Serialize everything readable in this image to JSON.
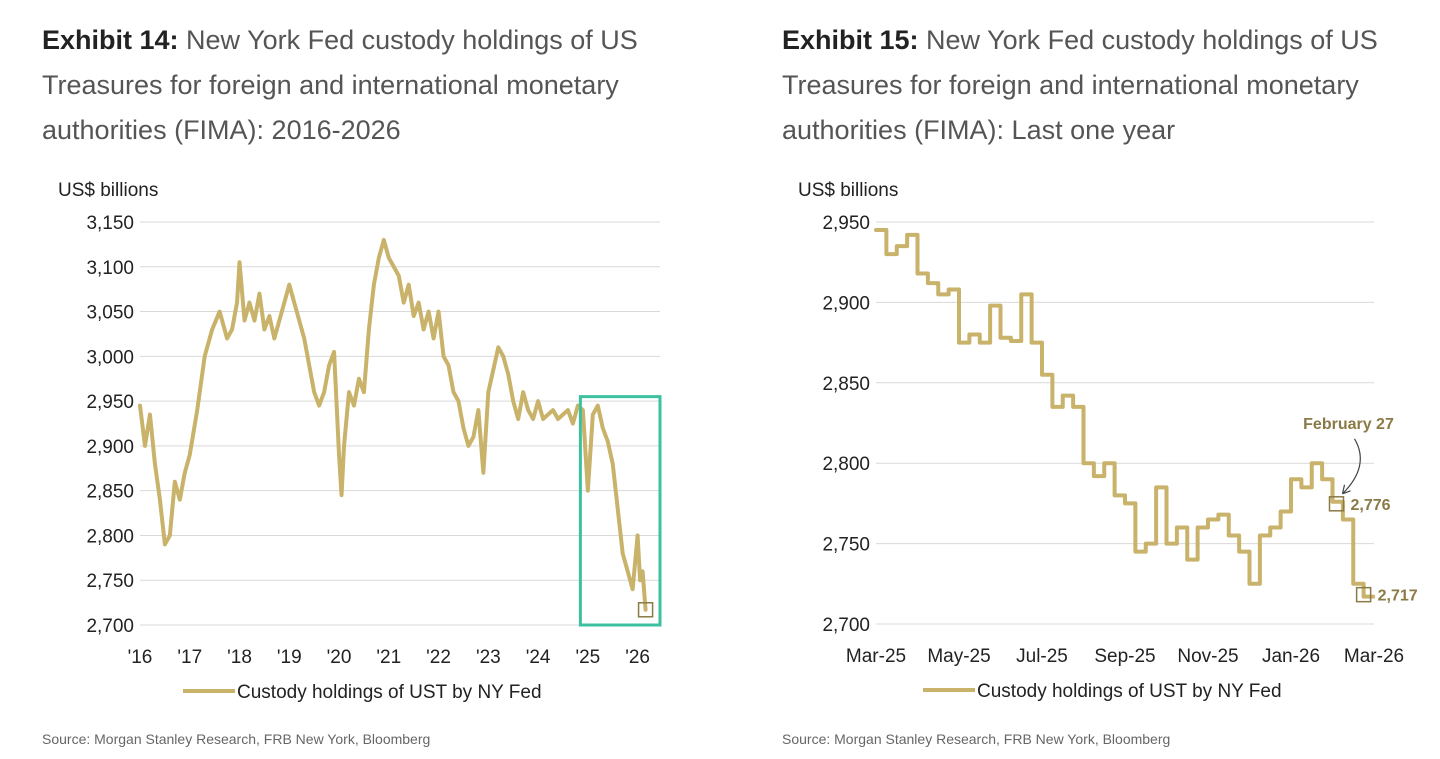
{
  "colors": {
    "series": "#C9B26A",
    "grid": "#D9D9D9",
    "highlight": "#3CC0A0",
    "annotation": "#8A7A45"
  },
  "chart_data": [
    {
      "type": "line",
      "exhibit_label": "Exhibit 14:",
      "title": "New York Fed custody holdings of US Treasures for foreign and international monetary authorities (FIMA): 2016-2026",
      "ylabel": "US$ billions",
      "ylim": [
        2700,
        3150
      ],
      "yticks": [
        "3,150",
        "3,100",
        "3,050",
        "3,000",
        "2,950",
        "2,900",
        "2,850",
        "2,800",
        "2,750",
        "2,700"
      ],
      "xlim": [
        2016,
        2026.45
      ],
      "xticks": [
        {
          "x": 2016,
          "label": "'16"
        },
        {
          "x": 2017,
          "label": "'17"
        },
        {
          "x": 2018,
          "label": "'18"
        },
        {
          "x": 2019,
          "label": "'19"
        },
        {
          "x": 2020,
          "label": "'20"
        },
        {
          "x": 2021,
          "label": "'21"
        },
        {
          "x": 2022,
          "label": "'22"
        },
        {
          "x": 2023,
          "label": "'23"
        },
        {
          "x": 2024,
          "label": "'24"
        },
        {
          "x": 2025,
          "label": "'25"
        },
        {
          "x": 2026,
          "label": "'26"
        }
      ],
      "series": [
        {
          "name": "Custody holdings of UST by NY Fed",
          "x": [
            2016.0,
            2016.1,
            2016.2,
            2016.3,
            2016.4,
            2016.5,
            2016.6,
            2016.7,
            2016.8,
            2016.9,
            2017.0,
            2017.15,
            2017.3,
            2017.45,
            2017.6,
            2017.75,
            2017.85,
            2017.95,
            2018.0,
            2018.1,
            2018.2,
            2018.3,
            2018.4,
            2018.5,
            2018.6,
            2018.7,
            2018.8,
            2018.9,
            2019.0,
            2019.1,
            2019.2,
            2019.3,
            2019.4,
            2019.5,
            2019.6,
            2019.7,
            2019.8,
            2019.9,
            2020.0,
            2020.05,
            2020.1,
            2020.2,
            2020.3,
            2020.4,
            2020.5,
            2020.6,
            2020.7,
            2020.8,
            2020.9,
            2021.0,
            2021.1,
            2021.2,
            2021.3,
            2021.4,
            2021.5,
            2021.6,
            2021.7,
            2021.8,
            2021.9,
            2022.0,
            2022.1,
            2022.2,
            2022.3,
            2022.4,
            2022.5,
            2022.6,
            2022.7,
            2022.8,
            2022.9,
            2023.0,
            2023.1,
            2023.2,
            2023.3,
            2023.4,
            2023.5,
            2023.6,
            2023.7,
            2023.8,
            2023.9,
            2024.0,
            2024.1,
            2024.2,
            2024.3,
            2024.4,
            2024.5,
            2024.6,
            2024.7,
            2024.8,
            2024.9,
            2025.0,
            2025.1,
            2025.2,
            2025.3,
            2025.4,
            2025.5,
            2025.6,
            2025.7,
            2025.8,
            2025.9,
            2026.0,
            2026.05,
            2026.1,
            2026.16
          ],
          "values": [
            2945,
            2900,
            2935,
            2880,
            2840,
            2790,
            2800,
            2860,
            2840,
            2870,
            2890,
            2940,
            3000,
            3030,
            3050,
            3020,
            3030,
            3060,
            3105,
            3040,
            3060,
            3040,
            3070,
            3030,
            3045,
            3020,
            3040,
            3060,
            3080,
            3060,
            3040,
            3020,
            2990,
            2960,
            2945,
            2960,
            2990,
            3005,
            2890,
            2845,
            2900,
            2960,
            2945,
            2975,
            2960,
            3030,
            3080,
            3110,
            3130,
            3110,
            3100,
            3090,
            3060,
            3080,
            3045,
            3060,
            3030,
            3050,
            3020,
            3050,
            3000,
            2990,
            2960,
            2950,
            2920,
            2900,
            2910,
            2940,
            2870,
            2960,
            2985,
            3010,
            3000,
            2980,
            2950,
            2930,
            2960,
            2940,
            2930,
            2950,
            2930,
            2935,
            2940,
            2930,
            2935,
            2940,
            2925,
            2945,
            2940,
            2850,
            2935,
            2945,
            2920,
            2905,
            2880,
            2830,
            2780,
            2760,
            2740,
            2800,
            2750,
            2760,
            2717
          ]
        }
      ],
      "highlight_box": {
        "x_from": 2024.85,
        "x_to": 2026.45,
        "y_from": 2700,
        "y_to": 2955
      },
      "end_marker": {
        "x": 2026.16,
        "y": 2717
      },
      "legend": "Custody holdings of UST by NY Fed",
      "source": "Source: Morgan Stanley Research, FRB New York, Bloomberg"
    },
    {
      "type": "line",
      "exhibit_label": "Exhibit 15:",
      "title": "New York Fed custody holdings of US Treasures for foreign and international monetary authorities (FIMA): Last one year",
      "ylabel": "US$ billions",
      "ylim": [
        2700,
        2950
      ],
      "yticks": [
        "2,950",
        "2,900",
        "2,850",
        "2,800",
        "2,750",
        "2,700"
      ],
      "xlim": [
        0,
        12
      ],
      "xticks": [
        {
          "x": 0,
          "label": "Mar-25"
        },
        {
          "x": 2,
          "label": "May-25"
        },
        {
          "x": 4,
          "label": "Jul-25"
        },
        {
          "x": 6,
          "label": "Sep-25"
        },
        {
          "x": 8,
          "label": "Nov-25"
        },
        {
          "x": 10,
          "label": "Jan-26"
        },
        {
          "x": 12,
          "label": "Mar-26"
        }
      ],
      "series": [
        {
          "name": "Custody holdings of UST by NY Fed",
          "step": true,
          "x": [
            0,
            0.25,
            0.5,
            0.75,
            1.0,
            1.25,
            1.5,
            1.75,
            2.0,
            2.25,
            2.5,
            2.75,
            3.0,
            3.25,
            3.5,
            3.75,
            4.0,
            4.25,
            4.5,
            4.75,
            5.0,
            5.25,
            5.5,
            5.75,
            6.0,
            6.25,
            6.5,
            6.75,
            7.0,
            7.25,
            7.5,
            7.75,
            8.0,
            8.25,
            8.5,
            8.75,
            9.0,
            9.25,
            9.5,
            9.75,
            10.0,
            10.25,
            10.5,
            10.75,
            11.0,
            11.25,
            11.5,
            11.75
          ],
          "values": [
            2945,
            2930,
            2935,
            2942,
            2918,
            2912,
            2905,
            2908,
            2875,
            2880,
            2875,
            2898,
            2878,
            2876,
            2905,
            2875,
            2855,
            2835,
            2842,
            2835,
            2800,
            2792,
            2800,
            2780,
            2775,
            2745,
            2750,
            2785,
            2750,
            2760,
            2740,
            2760,
            2765,
            2768,
            2755,
            2745,
            2725,
            2755,
            2760,
            2770,
            2790,
            2785,
            2800,
            2790,
            2776,
            2765,
            2725,
            2717
          ]
        }
      ],
      "annotations": [
        {
          "label": "February 27",
          "x": 11.0,
          "y": 2776,
          "value_label": "2,776"
        },
        {
          "label": "",
          "x": 11.75,
          "y": 2717,
          "value_label": "2,717"
        }
      ],
      "legend": "Custody holdings of UST by NY Fed",
      "source": "Source: Morgan Stanley Research, FRB New York, Bloomberg"
    }
  ]
}
